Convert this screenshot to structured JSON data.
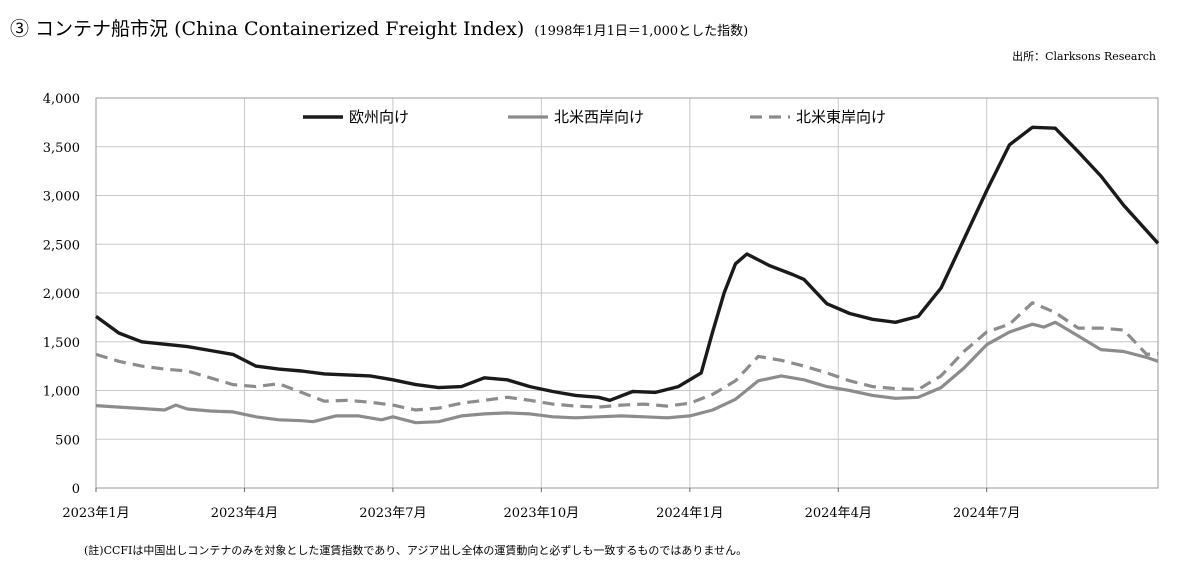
{
  "header": {
    "title": "③ コンテナ船市況 (China Containerized Freight Index)",
    "subtitle": "(1998年1月1日＝1,000とした指数)",
    "source": "出所：Clarksons Research"
  },
  "footer": {
    "note": "(註)CCFIは中国出しコンテナのみを対象とした運賃指数であり、アジア出し全体の運賃動向と必ずしも一致するものではありません。"
  },
  "colors": {
    "europe": "#1a1a1a",
    "west": "#8c8c8c",
    "east": "#8c8c8c",
    "grid": "#c8c8c8"
  },
  "chart_data": {
    "type": "line",
    "title": "",
    "xlabel": "",
    "ylabel": "",
    "ylim": [
      0,
      4000
    ],
    "xlim": [
      "2023-01-06",
      "2024-10-18"
    ],
    "yticks": [
      {
        "value": 0,
        "label": "0"
      },
      {
        "value": 500,
        "label": "500"
      },
      {
        "value": 1000,
        "label": "1,000"
      },
      {
        "value": 1500,
        "label": "1,500"
      },
      {
        "value": 2000,
        "label": "2,000"
      },
      {
        "value": 2500,
        "label": "2,500"
      },
      {
        "value": 3000,
        "label": "3,000"
      },
      {
        "value": 3500,
        "label": "3,500"
      },
      {
        "value": 4000,
        "label": "4,000"
      }
    ],
    "xticks": [
      {
        "x": "2023-01-06",
        "label": "2023年1月"
      },
      {
        "x": "2023-04-07",
        "label": "2023年4月"
      },
      {
        "x": "2023-07-07",
        "label": "2023年7月"
      },
      {
        "x": "2023-10-06",
        "label": "2023年10月"
      },
      {
        "x": "2024-01-05",
        "label": "2024年1月"
      },
      {
        "x": "2024-04-05",
        "label": "2024年4月"
      },
      {
        "x": "2024-07-05",
        "label": "2024年7月"
      }
    ],
    "grid": true,
    "legend_position": "top-center",
    "series": [
      {
        "name": "欧州向け",
        "style": "solid-dark",
        "points": [
          [
            "2023-01-06",
            1760
          ],
          [
            "2023-01-20",
            1590
          ],
          [
            "2023-02-03",
            1500
          ],
          [
            "2023-02-17",
            1475
          ],
          [
            "2023-03-03",
            1450
          ],
          [
            "2023-03-17",
            1410
          ],
          [
            "2023-03-31",
            1370
          ],
          [
            "2023-04-14",
            1250
          ],
          [
            "2023-04-28",
            1220
          ],
          [
            "2023-05-12",
            1200
          ],
          [
            "2023-05-26",
            1170
          ],
          [
            "2023-06-09",
            1160
          ],
          [
            "2023-06-23",
            1150
          ],
          [
            "2023-07-07",
            1110
          ],
          [
            "2023-07-21",
            1060
          ],
          [
            "2023-08-04",
            1030
          ],
          [
            "2023-08-18",
            1040
          ],
          [
            "2023-09-01",
            1130
          ],
          [
            "2023-09-15",
            1110
          ],
          [
            "2023-09-29",
            1040
          ],
          [
            "2023-10-13",
            990
          ],
          [
            "2023-10-27",
            950
          ],
          [
            "2023-11-10",
            930
          ],
          [
            "2023-11-17",
            900
          ],
          [
            "2023-12-01",
            990
          ],
          [
            "2023-12-15",
            980
          ],
          [
            "2023-12-29",
            1040
          ],
          [
            "2024-01-12",
            1180
          ],
          [
            "2024-01-19",
            1600
          ],
          [
            "2024-01-26",
            2000
          ],
          [
            "2024-02-02",
            2300
          ],
          [
            "2024-02-09",
            2400
          ],
          [
            "2024-02-23",
            2280
          ],
          [
            "2024-03-08",
            2190
          ],
          [
            "2024-03-15",
            2140
          ],
          [
            "2024-03-29",
            1890
          ],
          [
            "2024-04-12",
            1790
          ],
          [
            "2024-04-26",
            1730
          ],
          [
            "2024-05-10",
            1700
          ],
          [
            "2024-05-24",
            1760
          ],
          [
            "2024-06-07",
            2050
          ],
          [
            "2024-06-21",
            2550
          ],
          [
            "2024-07-05",
            3050
          ],
          [
            "2024-07-19",
            3520
          ],
          [
            "2024-08-02",
            3700
          ],
          [
            "2024-08-16",
            3690
          ],
          [
            "2024-08-30",
            3450
          ],
          [
            "2024-09-13",
            3200
          ],
          [
            "2024-09-27",
            2900
          ],
          [
            "2024-10-18",
            2510
          ]
        ]
      },
      {
        "name": "北米西岸向け",
        "style": "solid-gray",
        "points": [
          [
            "2023-01-06",
            845
          ],
          [
            "2023-01-20",
            830
          ],
          [
            "2023-02-03",
            815
          ],
          [
            "2023-02-17",
            800
          ],
          [
            "2023-02-24",
            850
          ],
          [
            "2023-03-03",
            810
          ],
          [
            "2023-03-17",
            790
          ],
          [
            "2023-03-31",
            780
          ],
          [
            "2023-04-14",
            730
          ],
          [
            "2023-04-28",
            700
          ],
          [
            "2023-05-12",
            690
          ],
          [
            "2023-05-19",
            680
          ],
          [
            "2023-06-02",
            740
          ],
          [
            "2023-06-16",
            740
          ],
          [
            "2023-06-30",
            700
          ],
          [
            "2023-07-07",
            730
          ],
          [
            "2023-07-21",
            670
          ],
          [
            "2023-08-04",
            680
          ],
          [
            "2023-08-18",
            740
          ],
          [
            "2023-09-01",
            760
          ],
          [
            "2023-09-15",
            770
          ],
          [
            "2023-09-29",
            760
          ],
          [
            "2023-10-13",
            730
          ],
          [
            "2023-10-27",
            720
          ],
          [
            "2023-11-10",
            730
          ],
          [
            "2023-11-24",
            740
          ],
          [
            "2023-12-08",
            730
          ],
          [
            "2023-12-22",
            720
          ],
          [
            "2024-01-05",
            740
          ],
          [
            "2024-01-19",
            800
          ],
          [
            "2024-02-02",
            910
          ],
          [
            "2024-02-16",
            1100
          ],
          [
            "2024-03-01",
            1150
          ],
          [
            "2024-03-15",
            1110
          ],
          [
            "2024-03-29",
            1040
          ],
          [
            "2024-04-12",
            1000
          ],
          [
            "2024-04-26",
            950
          ],
          [
            "2024-05-10",
            920
          ],
          [
            "2024-05-24",
            930
          ],
          [
            "2024-06-07",
            1030
          ],
          [
            "2024-06-21",
            1230
          ],
          [
            "2024-07-05",
            1470
          ],
          [
            "2024-07-19",
            1600
          ],
          [
            "2024-08-02",
            1680
          ],
          [
            "2024-08-09",
            1650
          ],
          [
            "2024-08-16",
            1700
          ],
          [
            "2024-08-30",
            1560
          ],
          [
            "2024-09-13",
            1420
          ],
          [
            "2024-09-27",
            1400
          ],
          [
            "2024-10-11",
            1340
          ],
          [
            "2024-10-18",
            1300
          ]
        ]
      },
      {
        "name": "北米東岸向け",
        "style": "dashed-gray",
        "points": [
          [
            "2023-01-06",
            1370
          ],
          [
            "2023-01-20",
            1300
          ],
          [
            "2023-02-03",
            1250
          ],
          [
            "2023-02-17",
            1220
          ],
          [
            "2023-03-03",
            1200
          ],
          [
            "2023-03-17",
            1130
          ],
          [
            "2023-03-31",
            1060
          ],
          [
            "2023-04-14",
            1040
          ],
          [
            "2023-04-28",
            1070
          ],
          [
            "2023-05-12",
            980
          ],
          [
            "2023-05-26",
            890
          ],
          [
            "2023-06-09",
            900
          ],
          [
            "2023-06-23",
            880
          ],
          [
            "2023-07-07",
            850
          ],
          [
            "2023-07-21",
            800
          ],
          [
            "2023-08-04",
            820
          ],
          [
            "2023-08-18",
            870
          ],
          [
            "2023-09-01",
            900
          ],
          [
            "2023-09-15",
            930
          ],
          [
            "2023-09-29",
            900
          ],
          [
            "2023-10-13",
            860
          ],
          [
            "2023-10-27",
            840
          ],
          [
            "2023-11-10",
            830
          ],
          [
            "2023-11-24",
            850
          ],
          [
            "2023-12-08",
            860
          ],
          [
            "2023-12-22",
            840
          ],
          [
            "2024-01-05",
            870
          ],
          [
            "2024-01-19",
            960
          ],
          [
            "2024-02-02",
            1100
          ],
          [
            "2024-02-16",
            1350
          ],
          [
            "2024-03-01",
            1310
          ],
          [
            "2024-03-15",
            1250
          ],
          [
            "2024-03-29",
            1180
          ],
          [
            "2024-04-12",
            1100
          ],
          [
            "2024-04-26",
            1040
          ],
          [
            "2024-05-10",
            1020
          ],
          [
            "2024-05-24",
            1010
          ],
          [
            "2024-06-07",
            1150
          ],
          [
            "2024-06-21",
            1400
          ],
          [
            "2024-07-05",
            1600
          ],
          [
            "2024-07-19",
            1680
          ],
          [
            "2024-08-02",
            1900
          ],
          [
            "2024-08-16",
            1800
          ],
          [
            "2024-08-30",
            1640
          ],
          [
            "2024-09-13",
            1640
          ],
          [
            "2024-09-27",
            1620
          ],
          [
            "2024-10-11",
            1370
          ],
          [
            "2024-10-18",
            1380
          ]
        ]
      }
    ]
  }
}
